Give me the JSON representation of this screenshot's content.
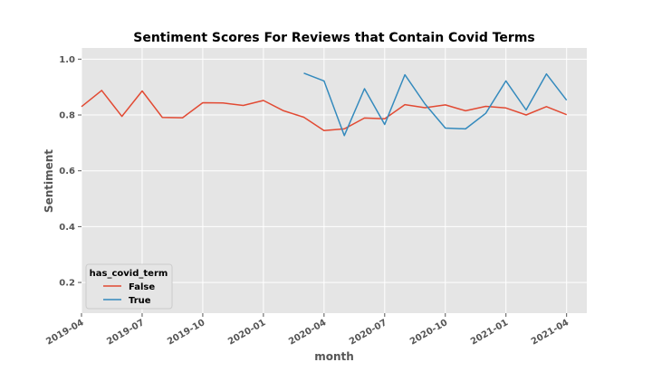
{
  "chart_data": {
    "type": "line",
    "title": "Sentiment Scores For Reviews that Contain Covid Terms",
    "xlabel": "month",
    "ylabel": "Sentiment",
    "x_ticks": [
      "2019-04",
      "2019-07",
      "2019-10",
      "2020-01",
      "2020-04",
      "2020-07",
      "2020-10",
      "2021-01",
      "2021-04"
    ],
    "y_ticks": [
      0.2,
      0.4,
      0.6,
      0.8,
      1.0
    ],
    "xlim": [
      "2019-04",
      "2021-05"
    ],
    "ylim": [
      0.09,
      1.04
    ],
    "grid": true,
    "legend": {
      "title": "has_covid_term",
      "placement": "lower-left"
    },
    "series": [
      {
        "name": "False",
        "color": "#e24a33",
        "x": [
          "2019-04",
          "2019-05",
          "2019-06",
          "2019-07",
          "2019-08",
          "2019-09",
          "2019-10",
          "2019-11",
          "2019-12",
          "2020-01",
          "2020-02",
          "2020-03",
          "2020-04",
          "2020-05",
          "2020-06",
          "2020-07",
          "2020-08",
          "2020-09",
          "2020-10",
          "2020-11",
          "2020-12",
          "2021-01",
          "2021-02",
          "2021-03",
          "2021-04"
        ],
        "y": [
          0.83,
          0.888,
          0.795,
          0.886,
          0.791,
          0.79,
          0.844,
          0.843,
          0.834,
          0.852,
          0.815,
          0.792,
          0.744,
          0.75,
          0.789,
          0.786,
          0.837,
          0.826,
          0.836,
          0.815,
          0.831,
          0.825,
          0.8,
          0.83,
          0.801
        ]
      },
      {
        "name": "True",
        "color": "#348abd",
        "x": [
          "2020-03",
          "2020-04",
          "2020-05",
          "2020-06",
          "2020-07",
          "2020-08",
          "2020-09",
          "2020-10",
          "2020-11",
          "2020-12",
          "2021-01",
          "2021-02",
          "2021-03",
          "2021-04"
        ],
        "y": [
          0.95,
          0.922,
          0.726,
          0.894,
          0.766,
          0.944,
          0.839,
          0.753,
          0.75,
          0.806,
          0.922,
          0.818,
          0.947,
          0.853
        ]
      }
    ]
  }
}
